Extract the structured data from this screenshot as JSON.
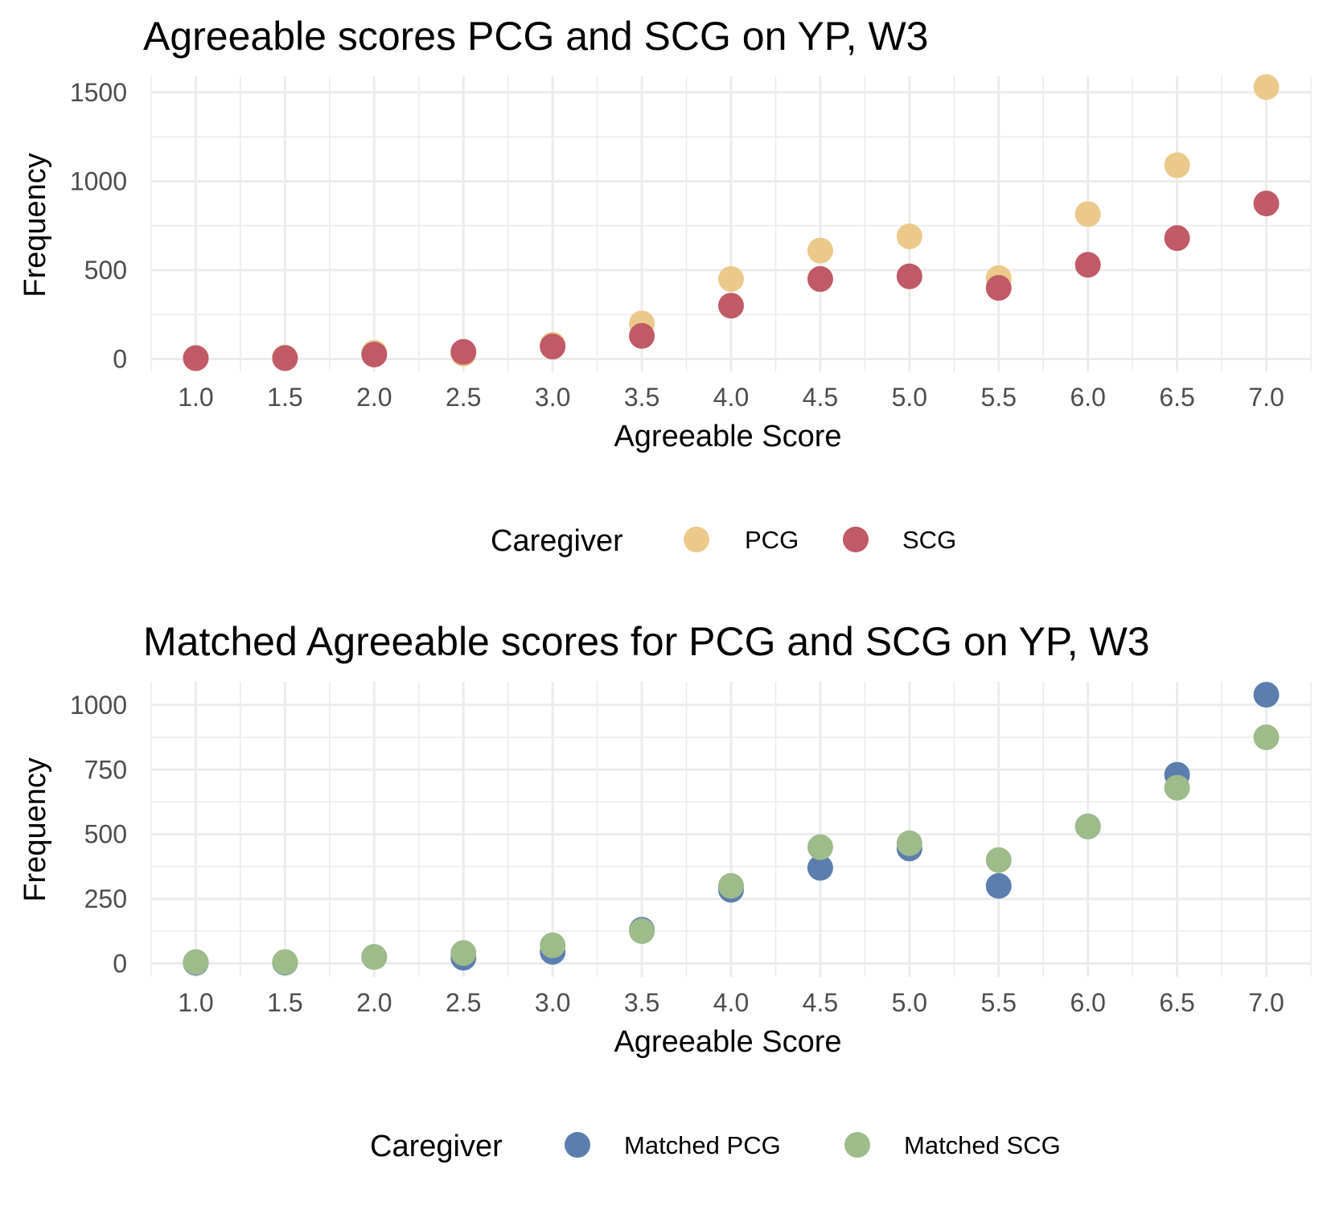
{
  "chart_data": [
    {
      "type": "scatter",
      "title": "Agreeable scores PCG and SCG on YP, W3",
      "xlabel": "Agreeable Score",
      "ylabel": "Frequency",
      "x": [
        1.0,
        1.5,
        2.0,
        2.5,
        3.0,
        3.5,
        4.0,
        4.5,
        5.0,
        5.5,
        6.0,
        6.5,
        7.0
      ],
      "xticks": [
        "1.0",
        "1.5",
        "2.0",
        "2.5",
        "3.0",
        "3.5",
        "4.0",
        "4.5",
        "5.0",
        "5.5",
        "6.0",
        "6.5",
        "7.0"
      ],
      "xlim": [
        0.75,
        7.25
      ],
      "yticks": [
        0,
        500,
        1000,
        1500
      ],
      "ylim": [
        -70,
        1590
      ],
      "grid": true,
      "legend": {
        "title": "Caregiver",
        "position": "bottom"
      },
      "series": [
        {
          "name": "PCG",
          "color": "#ebc98a",
          "values": [
            5,
            8,
            35,
            30,
            80,
            200,
            450,
            610,
            690,
            455,
            815,
            1090,
            1530
          ]
        },
        {
          "name": "SCG",
          "color": "#c05a66",
          "values": [
            5,
            5,
            25,
            40,
            70,
            130,
            300,
            450,
            465,
            400,
            530,
            680,
            875
          ]
        }
      ]
    },
    {
      "type": "scatter",
      "title": "Matched Agreeable scores for PCG and SCG on YP, W3",
      "xlabel": "Agreeable Score",
      "ylabel": "Frequency",
      "x": [
        1.0,
        1.5,
        2.0,
        2.5,
        3.0,
        3.5,
        4.0,
        4.5,
        5.0,
        5.5,
        6.0,
        6.5,
        7.0
      ],
      "xticks": [
        "1.0",
        "1.5",
        "2.0",
        "2.5",
        "3.0",
        "3.5",
        "4.0",
        "4.5",
        "5.0",
        "5.5",
        "6.0",
        "6.5",
        "7.0"
      ],
      "xlim": [
        0.75,
        7.25
      ],
      "yticks": [
        0,
        250,
        500,
        750,
        1000
      ],
      "ylim": [
        -52,
        1090
      ],
      "grid": true,
      "legend": {
        "title": "Caregiver",
        "position": "bottom"
      },
      "series": [
        {
          "name": "Matched PCG",
          "color": "#5b7eae",
          "values": [
            2,
            3,
            25,
            22,
            45,
            130,
            285,
            370,
            445,
            300,
            530,
            730,
            1040
          ]
        },
        {
          "name": "Matched SCG",
          "color": "#9dbc8a",
          "values": [
            5,
            5,
            25,
            40,
            70,
            125,
            300,
            450,
            465,
            400,
            530,
            680,
            875
          ]
        }
      ]
    }
  ]
}
